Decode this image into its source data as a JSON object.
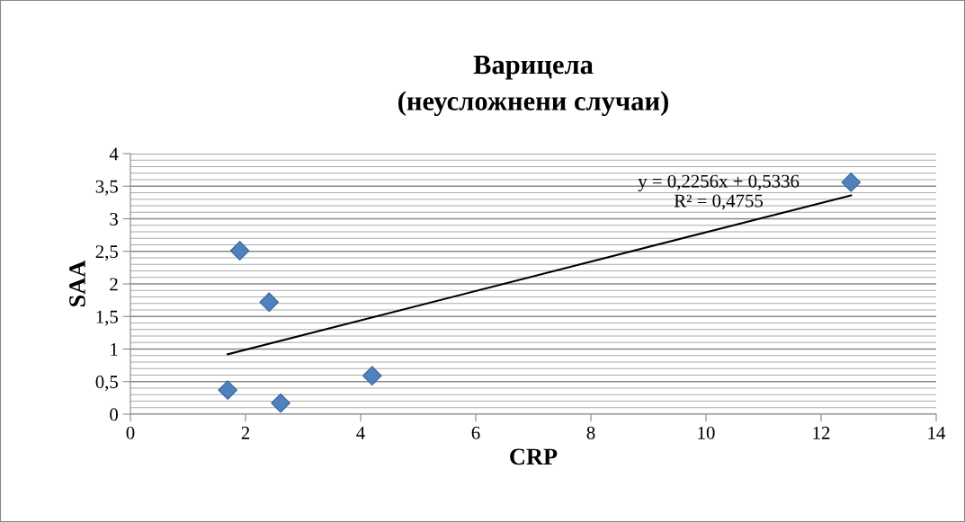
{
  "chart_data": {
    "type": "scatter",
    "title": "Варицела\n(неусложнени случаи)",
    "xlabel": "CRP",
    "ylabel": "SAA",
    "series": [
      {
        "color": "#4f81bd",
        "marker": "diamond",
        "x": [
          1.69,
          1.9,
          2.41,
          2.61,
          4.2,
          12.52
        ],
        "values": [
          0.37,
          2.51,
          1.72,
          0.17,
          0.59,
          3.56
        ]
      },
      {
        "type": "line",
        "color": "#000000",
        "marker": "none",
        "line_style": "solid",
        "x": [
          1.69,
          12.52
        ],
        "values": [
          0.92,
          3.36
        ]
      }
    ],
    "annotations": [
      "y = 0,2256x + 0,5336\nR² = 0,4755"
    ],
    "xlim": [
      0,
      14
    ],
    "xticks": [
      0,
      2,
      4,
      6,
      8,
      10,
      12,
      14
    ],
    "ylim": [
      0,
      4
    ],
    "yticks": [
      0,
      {
        "value": 0.5,
        "label": "0,5"
      },
      1,
      {
        "value": 1.5,
        "label": "1,5"
      },
      2,
      {
        "value": 2.5,
        "label": "2,5"
      },
      3,
      {
        "value": 3.5,
        "label": "3,5"
      },
      4
    ],
    "grid": "y",
    "legend": false
  }
}
